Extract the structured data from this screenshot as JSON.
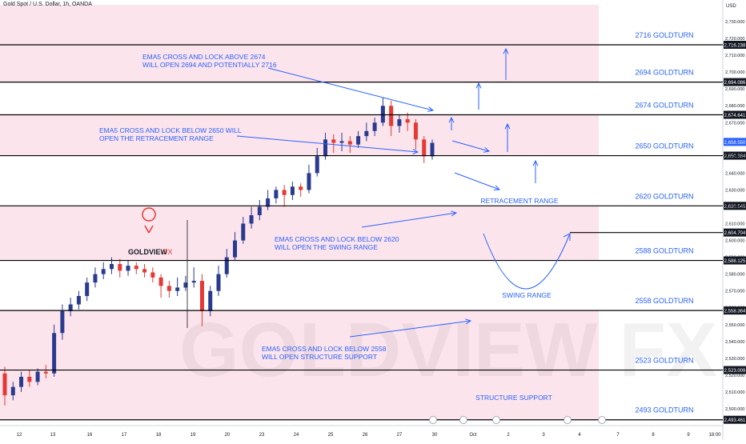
{
  "chart_data": {
    "type": "line",
    "title": "Gold Spot / U.S. Dollar, 1h, OANDA",
    "currency": "USD",
    "watermark": "GOLDVIEW FX",
    "logo_text": {
      "main": "GOLDVIEW",
      "suffix": "FX"
    },
    "ylim": [
      2490,
      2740
    ],
    "y_ticks": [
      2500,
      2510,
      2520,
      2530,
      2540,
      2550,
      2560,
      2570,
      2580,
      2590,
      2600,
      2610,
      2620,
      2630,
      2640,
      2650,
      2660,
      2670,
      2680,
      2690,
      2700,
      2710,
      2720,
      2730
    ],
    "y_tick_labels": [
      "2,500.000",
      "2,510.000",
      "2,520.000",
      "2,530.000",
      "2,540.000",
      "2,550.000",
      "2,560.000",
      "2,570.000",
      "2,580.000",
      "2,590.000",
      "2,600.000",
      "2,610.000",
      "2,620.000",
      "2,630.000",
      "2,640.000",
      "2,650.000",
      "2,660.000",
      "2,670.000",
      "2,680.000",
      "2,690.000",
      "2,700.000",
      "2,710.000",
      "2,720.000",
      "2,730.000"
    ],
    "x_tick_labels": [
      "12",
      "13",
      "16",
      "17",
      "18",
      "19",
      "20",
      "23",
      "24",
      "25",
      "26",
      "27",
      "30",
      "Oct",
      "2",
      "3",
      "4",
      "7",
      "8",
      "9",
      "18:00"
    ],
    "series": [
      {
        "values": [
          [
            2521,
            2508,
            2525,
            2502
          ],
          [
            2508,
            2513,
            2516,
            2505
          ],
          [
            2513,
            2519,
            2522,
            2510
          ],
          [
            2519,
            2516,
            2523,
            2513
          ],
          [
            2516,
            2522,
            2524,
            2514
          ],
          [
            2522,
            2521,
            2526,
            2518
          ],
          [
            2521,
            2545,
            2550,
            2519
          ],
          [
            2545,
            2558,
            2562,
            2541
          ],
          [
            2558,
            2562,
            2566,
            2555
          ],
          [
            2562,
            2567,
            2570,
            2559
          ],
          [
            2567,
            2575,
            2578,
            2564
          ],
          [
            2575,
            2580,
            2584,
            2572
          ],
          [
            2580,
            2583,
            2587,
            2577
          ],
          [
            2583,
            2586,
            2590,
            2580
          ],
          [
            2586,
            2582,
            2589,
            2578
          ],
          [
            2582,
            2585,
            2588,
            2579
          ],
          [
            2585,
            2583,
            2587,
            2580
          ],
          [
            2583,
            2581,
            2586,
            2578
          ],
          [
            2581,
            2578,
            2584,
            2575
          ],
          [
            2578,
            2573,
            2580,
            2566
          ],
          [
            2573,
            2570,
            2576,
            2566
          ],
          [
            2570,
            2572,
            2578,
            2567
          ],
          [
            2572,
            2575,
            2579,
            2570
          ],
          [
            2575,
            2576,
            2584,
            2572
          ],
          [
            2576,
            2558,
            2580,
            2549
          ],
          [
            2558,
            2570,
            2573,
            2555
          ],
          [
            2570,
            2580,
            2585,
            2567
          ],
          [
            2580,
            2590,
            2595,
            2578
          ],
          [
            2590,
            2600,
            2605,
            2588
          ],
          [
            2600,
            2610,
            2614,
            2598
          ],
          [
            2610,
            2615,
            2620,
            2607
          ],
          [
            2615,
            2620,
            2624,
            2612
          ],
          [
            2620,
            2625,
            2630,
            2618
          ],
          [
            2625,
            2630,
            2632,
            2622
          ],
          [
            2630,
            2627,
            2633,
            2620
          ],
          [
            2627,
            2632,
            2635,
            2624
          ],
          [
            2632,
            2630,
            2634,
            2626
          ],
          [
            2630,
            2640,
            2645,
            2628
          ],
          [
            2640,
            2650,
            2655,
            2638
          ],
          [
            2650,
            2660,
            2664,
            2648
          ],
          [
            2660,
            2658,
            2663,
            2652
          ],
          [
            2658,
            2659,
            2664,
            2653
          ],
          [
            2659,
            2657,
            2662,
            2652
          ],
          [
            2657,
            2662,
            2665,
            2655
          ],
          [
            2662,
            2665,
            2670,
            2659
          ],
          [
            2665,
            2670,
            2673,
            2662
          ],
          [
            2670,
            2680,
            2685,
            2668
          ],
          [
            2680,
            2668,
            2683,
            2662
          ],
          [
            2668,
            2672,
            2675,
            2664
          ],
          [
            2672,
            2670,
            2676,
            2665
          ],
          [
            2670,
            2660,
            2672,
            2654
          ],
          [
            2660,
            2650,
            2662,
            2646
          ],
          [
            2650,
            2658,
            2660,
            2648
          ]
        ]
      }
    ],
    "levels": [
      {
        "label": "2716 GOLDTURN",
        "value": 2716.238,
        "price_label": "2,716.238"
      },
      {
        "label": "2694 GOLDTURN",
        "value": 2694.086,
        "price_label": "2,694.086"
      },
      {
        "label": "2674 GOLDTURN",
        "value": 2674.641,
        "price_label": "2,674.641"
      },
      {
        "label": "2650 GOLDTURN",
        "value": 2650.384,
        "price_label": "2,650.384"
      },
      {
        "label": "2620 GOLDTURN",
        "value": 2620.545,
        "price_label": "2,620.545"
      },
      {
        "label": "2588 GOLDTURN",
        "value": 2588.125,
        "price_label": "2,588.125"
      },
      {
        "label": "2558 GOLDTURN",
        "value": 2558.364,
        "price_label": "2,558.364"
      },
      {
        "label": "2523 GOLDTURN",
        "value": 2523.009,
        "price_label": "2,523.009"
      },
      {
        "label": "2493 GOLDTURN",
        "value": 2493.461,
        "price_label": "2,493.461"
      }
    ],
    "shaded_zones": [
      [
        2694.086,
        2740
      ],
      [
        2650.384,
        2674.641
      ],
      [
        2588.125,
        2620.545
      ],
      [
        2523.009,
        2558.364
      ],
      [
        2493.461,
        2523.009
      ]
    ],
    "extra_price_labels": [
      {
        "value": 2658.55,
        "price_label": "2,658.550",
        "color": "#2962ff"
      },
      {
        "value": 2604.704,
        "price_label": "2,604.704",
        "color": "#131722"
      }
    ],
    "annotations": [
      {
        "line1": "EMA5 CROSS AND LOCK ABOVE 2674",
        "line2": "WILL OPEN 2694 AND POTENTIALLY 2716"
      },
      {
        "line1": "EMA5 CROSS AND LOCK BELOW 2650 WILL",
        "line2": "OPEN THE RETRACEMENT RANGE"
      },
      {
        "line1": "EMA5 CROSS AND LOCK BELOW 2620",
        "line2": "WILL OPEN THE SWING RANGE"
      },
      {
        "line1": "EMA5 CROSS AND LOCK BELOW 2558",
        "line2": "WILL OPEN STRUCTURE SUPPORT"
      }
    ],
    "zone_labels": [
      "RETRACEMENT RANGE",
      "SWING RANGE",
      "STRUCTURE SUPPORT"
    ],
    "colors": {
      "zone_fill": "#fce4ec",
      "level_line": "#000000",
      "annotation_text": "#2962ff",
      "up_candle": "#2a3b8f",
      "down_candle": "#e53935",
      "logo": "#e53935",
      "price_label_bg": "#131722"
    },
    "grid": false
  }
}
